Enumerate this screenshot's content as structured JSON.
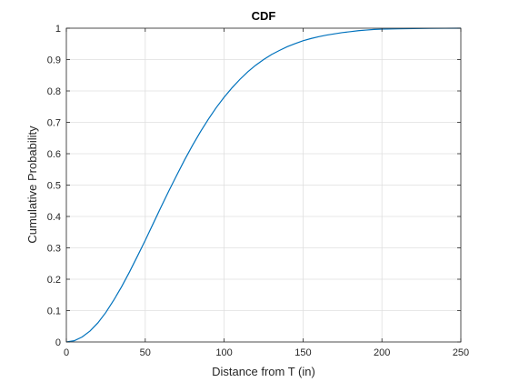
{
  "chart_data": {
    "type": "line",
    "title": "CDF",
    "xlabel": "Distance from T (in)",
    "ylabel": "Cumulative Probability",
    "xlim": [
      0,
      250
    ],
    "ylim": [
      0,
      1
    ],
    "grid": true,
    "legend": "none",
    "x_ticks": [
      "0",
      "50",
      "100",
      "150",
      "200",
      "250"
    ],
    "y_ticks": [
      "0",
      "0.1",
      "0.2",
      "0.3",
      "0.4",
      "0.5",
      "0.6",
      "0.7",
      "0.8",
      "0.9",
      "1"
    ],
    "x_tick_values": [
      0,
      50,
      100,
      150,
      200,
      250
    ],
    "y_tick_values": [
      0,
      0.1,
      0.2,
      0.3,
      0.4,
      0.5,
      0.6,
      0.7,
      0.8,
      0.9,
      1
    ],
    "series": [
      {
        "color": "#0072bd",
        "x": [
          0,
          5,
          10,
          15,
          20,
          25,
          30,
          35,
          40,
          45,
          50,
          55,
          60,
          65,
          70,
          75,
          80,
          85,
          90,
          95,
          100,
          105,
          110,
          115,
          120,
          125,
          130,
          135,
          140,
          145,
          150,
          155,
          160,
          165,
          170,
          175,
          180,
          185,
          190,
          195,
          200,
          210,
          220,
          230,
          240,
          250
        ],
        "y": [
          0,
          0.004,
          0.016,
          0.035,
          0.061,
          0.094,
          0.133,
          0.176,
          0.223,
          0.273,
          0.324,
          0.377,
          0.43,
          0.482,
          0.532,
          0.581,
          0.627,
          0.67,
          0.71,
          0.747,
          0.78,
          0.81,
          0.837,
          0.861,
          0.882,
          0.9,
          0.916,
          0.929,
          0.941,
          0.951,
          0.96,
          0.967,
          0.973,
          0.978,
          0.982,
          0.986,
          0.989,
          0.992,
          0.994,
          0.996,
          0.997,
          0.998,
          0.999,
          0.9995,
          0.9998,
          1.0
        ]
      }
    ]
  },
  "colors": {
    "line": "#0072bd",
    "grid": "#dfdfdf",
    "axis": "#262626"
  }
}
